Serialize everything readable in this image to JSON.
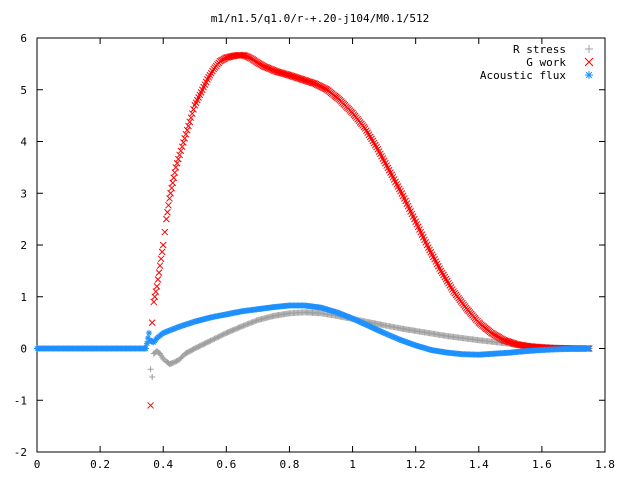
{
  "chart_data": {
    "type": "scatter",
    "title": "m1/n1.5/q1.0/r-+.20-j104/M0.1/512",
    "xlabel": "",
    "ylabel": "",
    "xlim": [
      0,
      1.8
    ],
    "ylim": [
      -2,
      6
    ],
    "x_ticks": [
      0,
      0.2,
      0.4,
      0.6,
      0.8,
      1,
      1.2,
      1.4,
      1.6,
      1.8
    ],
    "y_ticks": [
      -2,
      -1,
      0,
      1,
      2,
      3,
      4,
      5,
      6
    ],
    "grid": false,
    "legend_position": "top-right",
    "series": [
      {
        "name": "R stress",
        "marker": "plus",
        "color": "#a0a0a0",
        "points": [
          [
            0,
            0
          ],
          [
            0.3,
            0
          ],
          [
            0.345,
            0
          ],
          [
            0.355,
            0.2
          ],
          [
            0.36,
            -0.4
          ],
          [
            0.365,
            -0.55
          ],
          [
            0.37,
            -0.1
          ],
          [
            0.38,
            -0.05
          ],
          [
            0.39,
            -0.1
          ],
          [
            0.4,
            -0.2
          ],
          [
            0.41,
            -0.25
          ],
          [
            0.42,
            -0.3
          ],
          [
            0.43,
            -0.28
          ],
          [
            0.45,
            -0.22
          ],
          [
            0.47,
            -0.1
          ],
          [
            0.5,
            0.0
          ],
          [
            0.55,
            0.15
          ],
          [
            0.6,
            0.3
          ],
          [
            0.65,
            0.43
          ],
          [
            0.7,
            0.55
          ],
          [
            0.75,
            0.63
          ],
          [
            0.8,
            0.68
          ],
          [
            0.85,
            0.7
          ],
          [
            0.9,
            0.68
          ],
          [
            0.95,
            0.63
          ],
          [
            1.0,
            0.57
          ],
          [
            1.05,
            0.51
          ],
          [
            1.1,
            0.45
          ],
          [
            1.15,
            0.39
          ],
          [
            1.2,
            0.34
          ],
          [
            1.3,
            0.24
          ],
          [
            1.4,
            0.16
          ],
          [
            1.5,
            0.09
          ],
          [
            1.55,
            0.05
          ],
          [
            1.6,
            0.03
          ],
          [
            1.65,
            0.015
          ],
          [
            1.7,
            0.005
          ],
          [
            1.75,
            0.0
          ]
        ]
      },
      {
        "name": "G work",
        "marker": "cross",
        "color": "#ff0000",
        "points": [
          [
            0.36,
            -1.1
          ],
          [
            0.365,
            0.5
          ],
          [
            0.37,
            0.9
          ],
          [
            0.38,
            1.2
          ],
          [
            0.39,
            1.6
          ],
          [
            0.4,
            2.0
          ],
          [
            0.41,
            2.5
          ],
          [
            0.42,
            2.9
          ],
          [
            0.43,
            3.2
          ],
          [
            0.44,
            3.5
          ],
          [
            0.46,
            3.9
          ],
          [
            0.48,
            4.3
          ],
          [
            0.5,
            4.7
          ],
          [
            0.52,
            4.95
          ],
          [
            0.54,
            5.2
          ],
          [
            0.56,
            5.4
          ],
          [
            0.58,
            5.55
          ],
          [
            0.6,
            5.62
          ],
          [
            0.62,
            5.65
          ],
          [
            0.64,
            5.67
          ],
          [
            0.66,
            5.66
          ],
          [
            0.68,
            5.6
          ],
          [
            0.7,
            5.52
          ],
          [
            0.72,
            5.45
          ],
          [
            0.74,
            5.4
          ],
          [
            0.76,
            5.35
          ],
          [
            0.8,
            5.28
          ],
          [
            0.84,
            5.2
          ],
          [
            0.88,
            5.12
          ],
          [
            0.92,
            5.0
          ],
          [
            0.96,
            4.8
          ],
          [
            1.0,
            4.55
          ],
          [
            1.04,
            4.25
          ],
          [
            1.08,
            3.85
          ],
          [
            1.12,
            3.4
          ],
          [
            1.16,
            2.95
          ],
          [
            1.2,
            2.45
          ],
          [
            1.24,
            1.95
          ],
          [
            1.28,
            1.5
          ],
          [
            1.32,
            1.1
          ],
          [
            1.36,
            0.78
          ],
          [
            1.4,
            0.5
          ],
          [
            1.44,
            0.3
          ],
          [
            1.48,
            0.16
          ],
          [
            1.52,
            0.08
          ],
          [
            1.56,
            0.04
          ],
          [
            1.6,
            0.02
          ],
          [
            1.65,
            0.005
          ],
          [
            1.7,
            0.0
          ],
          [
            1.75,
            0.0
          ]
        ]
      },
      {
        "name": "Acoustic flux",
        "marker": "star",
        "color": "#1e90ff",
        "points": [
          [
            0,
            0
          ],
          [
            0.3,
            0
          ],
          [
            0.345,
            0
          ],
          [
            0.355,
            0.3
          ],
          [
            0.36,
            0.15
          ],
          [
            0.37,
            0.12
          ],
          [
            0.38,
            0.2
          ],
          [
            0.4,
            0.3
          ],
          [
            0.45,
            0.42
          ],
          [
            0.5,
            0.52
          ],
          [
            0.55,
            0.6
          ],
          [
            0.6,
            0.66
          ],
          [
            0.65,
            0.72
          ],
          [
            0.7,
            0.76
          ],
          [
            0.75,
            0.8
          ],
          [
            0.8,
            0.83
          ],
          [
            0.85,
            0.83
          ],
          [
            0.9,
            0.79
          ],
          [
            0.95,
            0.7
          ],
          [
            1.0,
            0.58
          ],
          [
            1.05,
            0.44
          ],
          [
            1.1,
            0.3
          ],
          [
            1.15,
            0.17
          ],
          [
            1.2,
            0.06
          ],
          [
            1.25,
            -0.03
          ],
          [
            1.3,
            -0.08
          ],
          [
            1.35,
            -0.11
          ],
          [
            1.4,
            -0.12
          ],
          [
            1.45,
            -0.1
          ],
          [
            1.5,
            -0.08
          ],
          [
            1.55,
            -0.05
          ],
          [
            1.6,
            -0.03
          ],
          [
            1.65,
            -0.015
          ],
          [
            1.7,
            -0.005
          ],
          [
            1.75,
            0.0
          ]
        ]
      }
    ]
  }
}
